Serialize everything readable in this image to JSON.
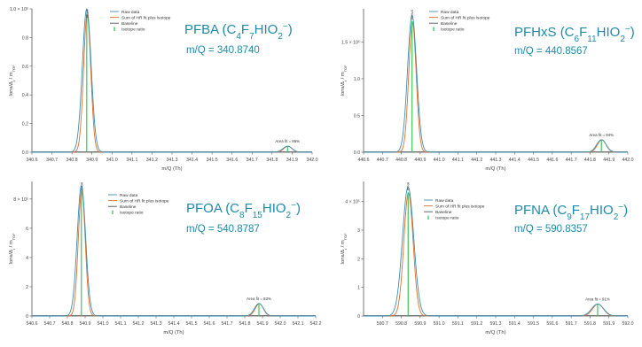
{
  "colors": {
    "raw": "#3a8fb7",
    "fit": "#e0702a",
    "baseline": "#555555",
    "isotope": "#2fbf4f",
    "heading": "#1e8aa8",
    "axis": "#555555"
  },
  "chart_data": [
    {
      "type": "line",
      "title_name": "PFBA",
      "title_formula": [
        [
          "(C",
          "normal"
        ],
        [
          "4",
          "sub"
        ],
        [
          "F",
          "normal"
        ],
        [
          "7",
          "sub"
        ],
        [
          "HIO",
          "normal"
        ],
        [
          "2",
          "sub"
        ],
        [
          "−",
          "sup"
        ],
        [
          ")",
          "normal"
        ]
      ],
      "subtitle": "m/Q = 340.8740",
      "xlabel": "m/Q (Th)",
      "ylabel_html": [
        [
          "Ions/Δ",
          "normal"
        ],
        [
          "t",
          "sub"
        ],
        [
          " / m",
          "normal"
        ],
        [
          "TOF",
          "sub"
        ]
      ],
      "xlim": [
        340.6,
        342.0
      ],
      "ylim": [
        0,
        1.0
      ],
      "x_ticks": [
        "340.6",
        "340.7",
        "340.8",
        "340.9",
        "341.0",
        "341.1",
        "341.2",
        "341.3",
        "341.4",
        "341.5",
        "341.6",
        "341.7",
        "341.8",
        "341.9",
        "342.0"
      ],
      "y_ticks": [
        [
          0.0,
          "0.0"
        ],
        [
          0.2,
          "0.2"
        ],
        [
          0.4,
          "0.4"
        ],
        [
          0.6,
          "0.6"
        ],
        [
          0.8,
          "0.8"
        ],
        [
          1.0,
          "1.0 × 10⁶"
        ]
      ],
      "peak_label": "PFBA",
      "main_peak": {
        "x": 340.874,
        "raw_height": 1.0,
        "fit_height": 0.96,
        "width": 0.022
      },
      "isotope_peak": {
        "x": 341.877,
        "height": 0.042
      },
      "isotope_annotation": "Area fit = 95%",
      "legend": [
        "Raw data",
        "Sum of HR fit plus isotope",
        "Baseline",
        "Isotope ratio"
      ]
    },
    {
      "type": "line",
      "title_name": "PFHxS",
      "title_formula": [
        [
          "(C",
          "normal"
        ],
        [
          "6",
          "sub"
        ],
        [
          "F",
          "normal"
        ],
        [
          "11",
          "sub"
        ],
        [
          "HIO",
          "normal"
        ],
        [
          "2",
          "sub"
        ],
        [
          "−",
          "sup"
        ],
        [
          ")",
          "normal"
        ]
      ],
      "subtitle": "m/Q = 440.8567",
      "xlabel": "m/Q (Th)",
      "ylabel_html": [
        [
          "Ions/Δ",
          "normal"
        ],
        [
          "t",
          "sub"
        ],
        [
          " / m",
          "normal"
        ],
        [
          "TOF",
          "sub"
        ]
      ],
      "xlim": [
        440.6,
        442.0
      ],
      "ylim": [
        0,
        1.95
      ],
      "x_ticks": [
        "440.6",
        "440.7",
        "440.8",
        "440.9",
        "441.0",
        "441.1",
        "441.2",
        "441.3",
        "441.4",
        "441.5",
        "441.6",
        "441.7",
        "441.8",
        "441.9",
        "442.0"
      ],
      "y_ticks": [
        [
          0.0,
          "0.0"
        ],
        [
          0.5,
          "0.5"
        ],
        [
          1.0,
          "1.0"
        ],
        [
          1.5,
          "1.5 × 10⁶"
        ]
      ],
      "peak_label": "PFHxS",
      "main_peak": {
        "x": 440.857,
        "raw_height": 1.86,
        "fit_height": 1.77,
        "width": 0.024
      },
      "isotope_peak": {
        "x": 441.86,
        "height": 0.17
      },
      "isotope_annotation": "Area fit = 94%",
      "legend": [
        "Raw data",
        "Sum of HR fit plus isotope",
        "Baseline",
        "Isotope ratio"
      ]
    },
    {
      "type": "line",
      "title_name": "PFOA",
      "title_formula": [
        [
          "(C",
          "normal"
        ],
        [
          "8",
          "sub"
        ],
        [
          "F",
          "normal"
        ],
        [
          "15",
          "sub"
        ],
        [
          "HIO",
          "normal"
        ],
        [
          "2",
          "sub"
        ],
        [
          "−",
          "sup"
        ],
        [
          ")",
          "normal"
        ]
      ],
      "subtitle": "m/Q = 540.8787",
      "xlabel": "m/Q (Th)",
      "ylabel_html": [
        [
          "Ions/Δ",
          "normal"
        ],
        [
          "t",
          "sub"
        ],
        [
          " / m",
          "normal"
        ],
        [
          "TOF",
          "sub"
        ]
      ],
      "xlim": [
        540.6,
        542.2
      ],
      "ylim": [
        0,
        9.2
      ],
      "x_ticks": [
        "540.6",
        "540.7",
        "540.8",
        "540.9",
        "541.0",
        "541.1",
        "541.2",
        "541.3",
        "541.4",
        "541.5",
        "541.6",
        "541.7",
        "541.8",
        "541.9",
        "542.0",
        "542.1",
        "542.2"
      ],
      "y_ticks": [
        [
          0,
          "0"
        ],
        [
          2,
          "2"
        ],
        [
          4,
          "4"
        ],
        [
          6,
          "6"
        ],
        [
          8,
          "8 × 10⁵"
        ]
      ],
      "peak_label": "PFOA",
      "main_peak": {
        "x": 540.879,
        "raw_height": 8.9,
        "fit_height": 8.6,
        "width": 0.024
      },
      "isotope_peak": {
        "x": 541.88,
        "height": 0.85
      },
      "isotope_annotation": "Area fit = 93%",
      "legend": [
        "Raw data",
        "Sum of HR fit plus isotope",
        "Baseline",
        "Isotope ratio"
      ]
    },
    {
      "type": "line",
      "title_name": "PFNA",
      "title_formula": [
        [
          "(C",
          "normal"
        ],
        [
          "9",
          "sub"
        ],
        [
          "F",
          "normal"
        ],
        [
          "17",
          "sub"
        ],
        [
          "HIO",
          "normal"
        ],
        [
          "2",
          "sub"
        ],
        [
          "−",
          "sup"
        ],
        [
          ")",
          "normal"
        ]
      ],
      "subtitle": "m/Q = 590.8357",
      "xlabel": "m/Q (Th)",
      "ylabel_html": [
        [
          "Ions/Δ",
          "normal"
        ],
        [
          "t",
          "sub"
        ],
        [
          " / m",
          "normal"
        ],
        [
          "TOF",
          "sub"
        ]
      ],
      "xlim": [
        590.6,
        592.0
      ],
      "ylim": [
        0,
        4.7
      ],
      "x_ticks": [
        "590.7",
        "590.8",
        "590.9",
        "591.0",
        "591.1",
        "591.2",
        "591.3",
        "591.4",
        "591.5",
        "591.6",
        "591.7",
        "591.8",
        "591.9",
        "592.0"
      ],
      "y_ticks": [
        [
          0,
          "0"
        ],
        [
          1,
          "1"
        ],
        [
          2,
          "2"
        ],
        [
          3,
          "3"
        ],
        [
          4,
          "4 × 10⁵"
        ]
      ],
      "peak_label": "PFNA",
      "main_peak": {
        "x": 590.836,
        "raw_height": 4.5,
        "fit_height": 4.3,
        "width": 0.03
      },
      "isotope_peak": {
        "x": 591.84,
        "height": 0.42
      },
      "isotope_annotation": "Area fit = 91%",
      "legend": [
        "Raw data",
        "Sum of HR fit plus isotope",
        "Baseline",
        "Isotope ratio"
      ]
    }
  ]
}
